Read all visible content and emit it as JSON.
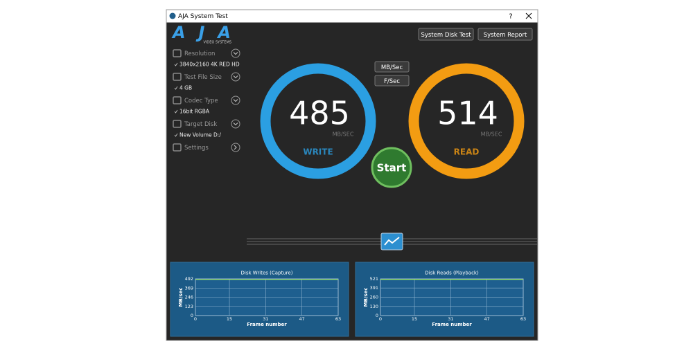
{
  "window": {
    "title": "AJA System Test",
    "help": "?"
  },
  "logo": {
    "name": "AJA",
    "tagline": "VIDEO SYSTEMS"
  },
  "buttons": {
    "disk_test": "System Disk Test",
    "report": "System Report",
    "mb_sec": "MB/Sec",
    "f_sec": "F/Sec",
    "start": "Start"
  },
  "settings": [
    {
      "label": "Resolution",
      "value": "3840x2160 4K RED HD"
    },
    {
      "label": "Test File Size",
      "value": "4 GB"
    },
    {
      "label": "Codec Type",
      "value": "16bit RGBA"
    },
    {
      "label": "Target Disk",
      "value": "New Volume D:/"
    },
    {
      "label": "Settings"
    }
  ],
  "gauges": [
    {
      "value": 485,
      "unit": "MB/SEC",
      "label": "WRITE",
      "color": "#2b9fe2"
    },
    {
      "value": 514,
      "unit": "MB/SEC",
      "label": "READ",
      "color": "#f39c12"
    }
  ],
  "charts": [
    {
      "type": "line",
      "title": "Disk Writes (Capture)",
      "ylabel": "MB/sec",
      "xlabel": "Frame number",
      "x": [
        0,
        63
      ],
      "values": [
        485,
        485
      ],
      "color": "#9be06a",
      "xlim": [
        0,
        63
      ],
      "ylim": [
        0,
        492
      ],
      "xticks": [
        0,
        15,
        31,
        47,
        63
      ],
      "yticks": [
        0,
        123,
        246,
        369,
        492
      ]
    },
    {
      "type": "line",
      "title": "Disk Reads (Playback)",
      "ylabel": "MB/sec",
      "xlabel": "Frame number",
      "x": [
        0,
        63
      ],
      "values": [
        514,
        514
      ],
      "color": "#9be06a",
      "xlim": [
        0,
        63
      ],
      "ylim": [
        0,
        521
      ],
      "xticks": [
        0,
        15,
        31,
        47,
        63
      ],
      "yticks": [
        0,
        130,
        260,
        391,
        521
      ]
    }
  ]
}
